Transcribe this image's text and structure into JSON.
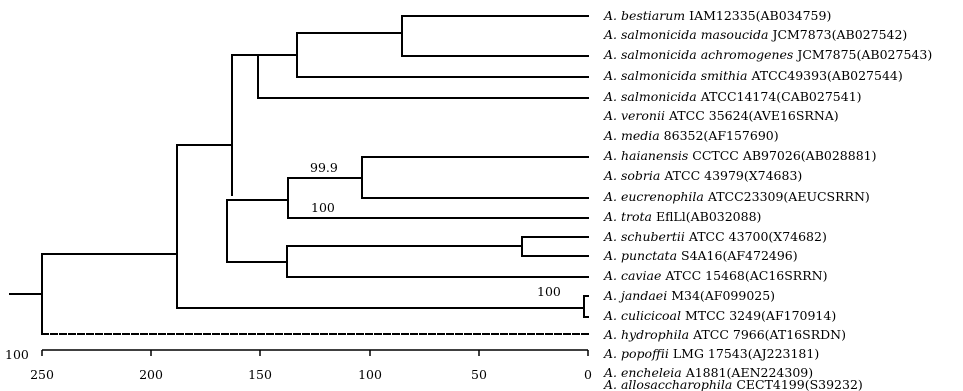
{
  "taxa": [
    {
      "genus_species": "A. bestiarum",
      "strain": "IAM12335(AB034759)"
    },
    {
      "genus_species": "A. salmonicida masoucida",
      "strain": "JCM7873(AB027542)"
    },
    {
      "genus_species": "A. salmonicida achromogenes",
      "strain": "JCM7875(AB027543)"
    },
    {
      "genus_species": "A. salmonicida smithia",
      "strain": "ATCC49393(AB027544)"
    },
    {
      "genus_species": "A. salmonicida",
      "strain": "ATCC14174(CAB027541)"
    },
    {
      "genus_species": "A. veronii",
      "strain": "ATCC 35624(AVE16SRNA)"
    },
    {
      "genus_species": "A. media",
      "strain": "86352(AF157690)"
    },
    {
      "genus_species": "A. haianensis",
      "strain": "CCTCC AB97026(AB028881)"
    },
    {
      "genus_species": "A. sobria",
      "strain": "ATCC 43979(X74683)"
    },
    {
      "genus_species": "A. eucrenophila",
      "strain": "ATCC23309(AEUCSRRN)"
    },
    {
      "genus_species": "A. trota",
      "strain": "EflLl(AB032088)"
    },
    {
      "genus_species": "A. schubertii",
      "strain": "ATCC 43700(X74682)"
    },
    {
      "genus_species": "A. punctata",
      "strain": "S4A16(AF472496)"
    },
    {
      "genus_species": "A. caviae",
      "strain": "ATCC 15468(AC16SRRN)"
    },
    {
      "genus_species": "A. jandaei",
      "strain": "M34(AF099025)"
    },
    {
      "genus_species": "A. culicicoal",
      "strain": "MTCC 3249(AF170914)"
    },
    {
      "genus_species": "A. hydrophila",
      "strain": "ATCC 7966(AT16SRDN)"
    },
    {
      "genus_species": "A. popoffii",
      "strain": "LMG 17543(AJ223181)"
    },
    {
      "genus_species": "A. encheleia",
      "strain": "A1881(AEN224309)"
    },
    {
      "genus_species": "A. allosaccharophila",
      "strain": "CECT4199(S39232)"
    }
  ],
  "bootstrap": {
    "sobria_eucrenophila": "99.9",
    "trota_node": "100",
    "culicicoal_hydrophila": "100",
    "root": "100"
  },
  "axis": {
    "ticks": [
      "250",
      "200",
      "150",
      "100",
      "50",
      "0"
    ],
    "tick_values": [
      250,
      200,
      150,
      100,
      50,
      0
    ]
  }
}
